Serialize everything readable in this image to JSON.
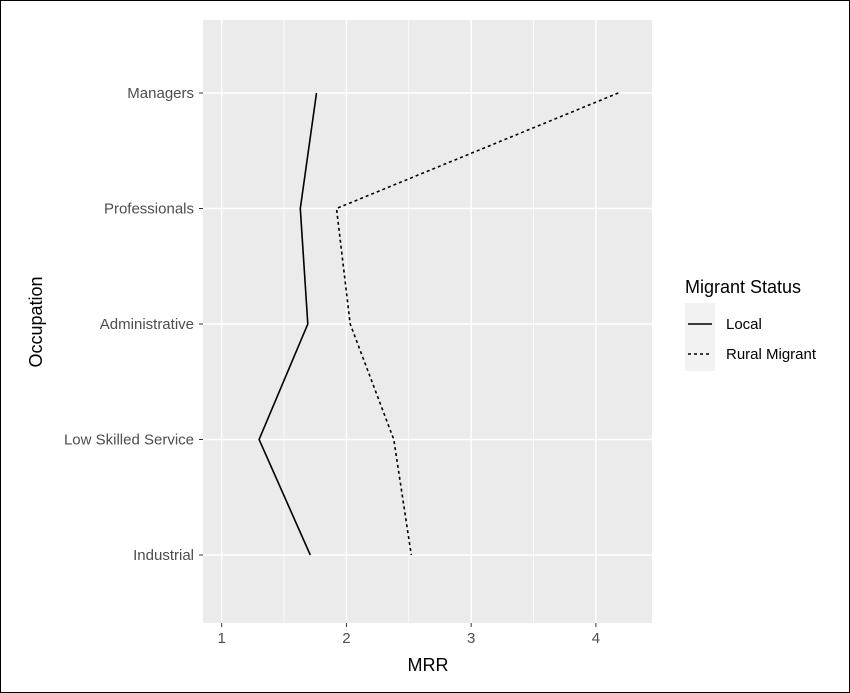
{
  "chart_data": {
    "type": "line",
    "title": "",
    "xlabel": "MRR",
    "ylabel": "Occupation",
    "xlim": [
      0.85,
      4.45
    ],
    "x_ticks": [
      1,
      2,
      3,
      4
    ],
    "x_tick_labels": [
      "1",
      "2",
      "3",
      "4"
    ],
    "categories": [
      "Managers",
      "Professionals",
      "Administrative",
      "Low Skilled Service",
      "Industrial"
    ],
    "orientation": "categories-on-y",
    "grid": true,
    "panel_background": "#ebebeb",
    "grid_color": "#ffffff",
    "legend": {
      "title": "Migrant Status",
      "placement": "right",
      "entries": [
        "Local",
        "Rural Migrant"
      ]
    },
    "series": [
      {
        "name": "Local",
        "line_style": "solid",
        "color": "#000000",
        "values": [
          1.76,
          1.63,
          1.69,
          1.3,
          1.71
        ]
      },
      {
        "name": "Rural Migrant",
        "line_style": "dotted",
        "color": "#000000",
        "values": [
          4.18,
          1.92,
          2.03,
          2.38,
          2.52
        ]
      }
    ]
  }
}
